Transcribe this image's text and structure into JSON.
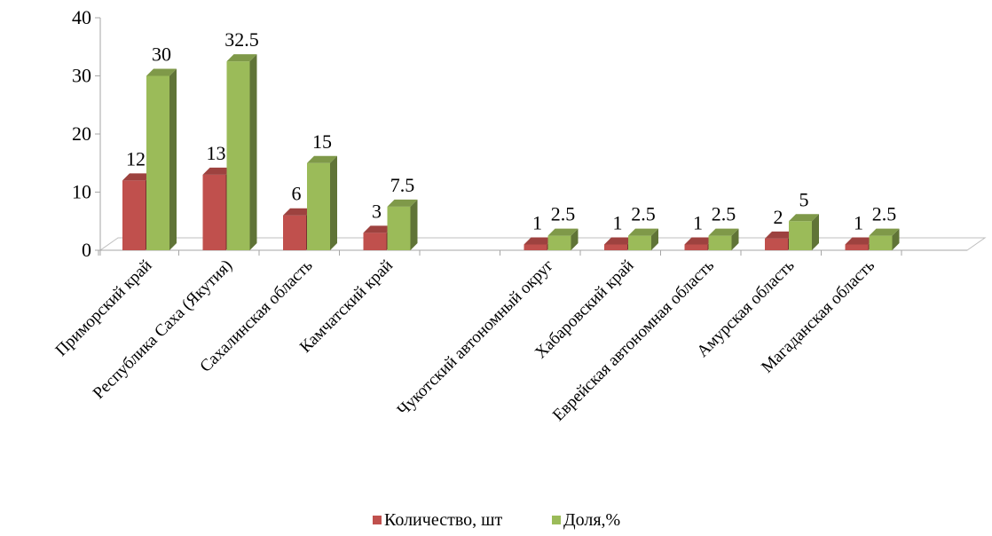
{
  "chart_data": {
    "type": "bar",
    "categories": [
      "Приморский край",
      "Республика Саха (Якутия)",
      "Сахалинская область",
      "Камчатский край",
      "",
      "Чукотский автономный округ",
      "Хабаровский край",
      "Еврейская автономная область",
      "Амурская область",
      "Магаданская область"
    ],
    "series": [
      {
        "name": "Количество, шт",
        "color": "#c0504d",
        "values": [
          12,
          13,
          6,
          3,
          null,
          1,
          1,
          1,
          2,
          1
        ],
        "labels": [
          "12",
          "13",
          "6",
          "3",
          "",
          "1",
          "1",
          "1",
          "2",
          "1"
        ]
      },
      {
        "name": "Доля,%",
        "color": "#9bbb59",
        "values": [
          30,
          32.5,
          15,
          7.5,
          null,
          2.5,
          2.5,
          2.5,
          5,
          2.5
        ],
        "labels": [
          "30",
          "32.5",
          "15",
          "7.5",
          "",
          "2.5",
          "2.5",
          "2.5",
          "5",
          "2.5"
        ]
      }
    ],
    "ylim": [
      0,
      40
    ],
    "yticks": [
      "0",
      "10",
      "20",
      "30",
      "40"
    ],
    "grid": false,
    "style": "3d-columns",
    "legend_position": "bottom"
  }
}
